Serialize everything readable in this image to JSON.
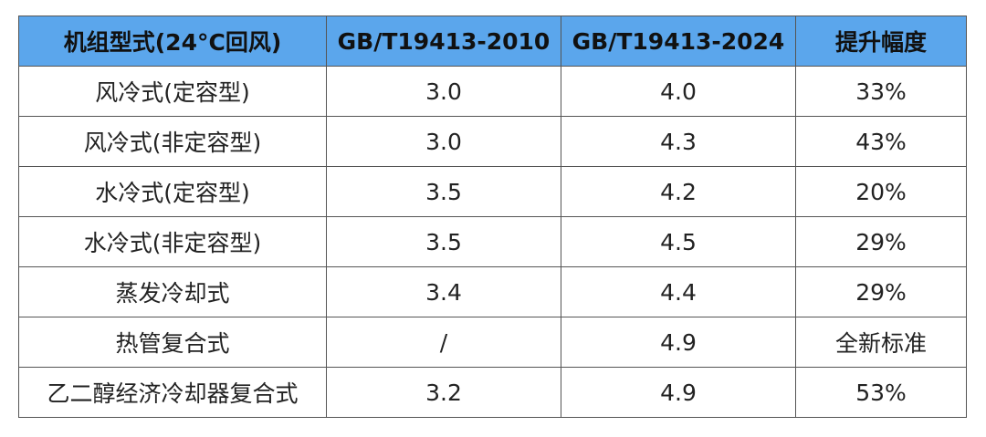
{
  "table": {
    "header": [
      "机组型式(24°C回风)",
      "GB/T19413-2010",
      "GB/T19413-2024",
      "提升幅度"
    ],
    "rows": [
      [
        "风冷式(定容型)",
        "3.0",
        "4.0",
        "33%"
      ],
      [
        "风冷式(非定容型)",
        "3.0",
        "4.3",
        "43%"
      ],
      [
        "水冷式(定容型)",
        "3.5",
        "4.2",
        "20%"
      ],
      [
        "水冷式(非定容型)",
        "3.5",
        "4.5",
        "29%"
      ],
      [
        "蒸发冷却式",
        "3.4",
        "4.4",
        "29%"
      ],
      [
        "热管复合式",
        "/",
        "4.9",
        "全新标准"
      ],
      [
        "乙二醇经济冷却器复合式",
        "3.2",
        "4.9",
        "53%"
      ]
    ]
  }
}
